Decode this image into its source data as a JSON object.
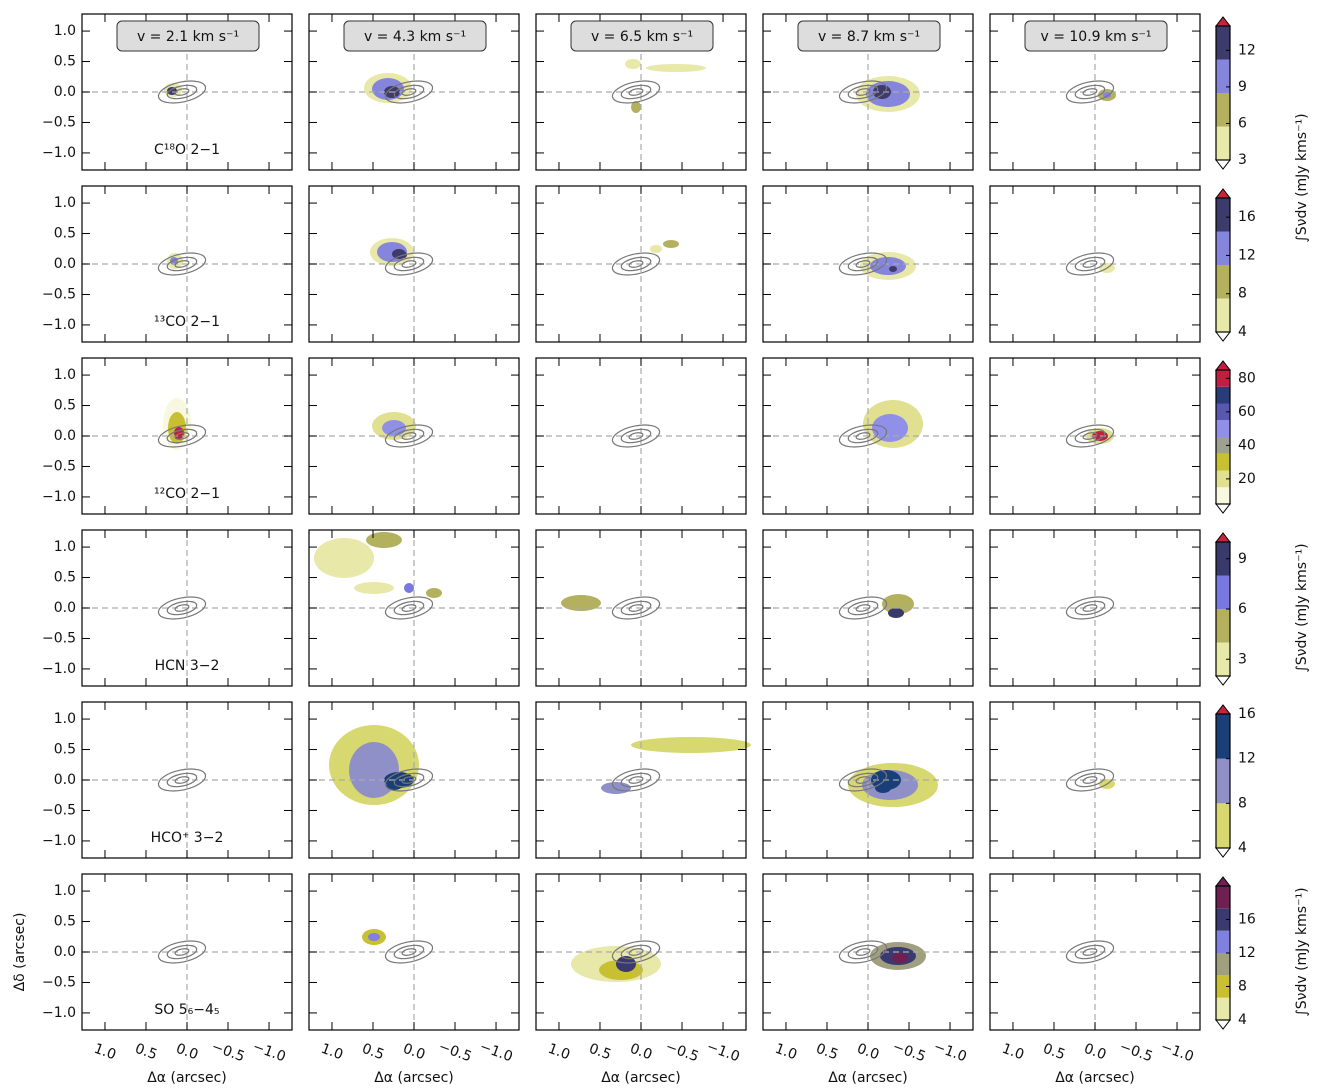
{
  "chart_data": {
    "type": "channel-map",
    "xlabel": "Δα (arcsec)",
    "ylabel": "Δδ (arcsec)",
    "colorbar_label": "∫Sνdv (mJy kms⁻¹)",
    "velocities": [
      "v = 2.1 km s⁻¹",
      "v = 4.3 km s⁻¹",
      "v = 6.5 km s⁻¹",
      "v = 8.7 km s⁻¹",
      "v = 10.9 km s⁻¹"
    ],
    "lines": [
      "C¹⁸O 2−1",
      "¹³CO 2−1",
      "¹²CO 2−1",
      "HCN 3−2",
      "HCO⁺ 3−2",
      "SO 5₆−4₅"
    ],
    "xlim": [
      1.28,
      -1.28
    ],
    "ylim": [
      -1.28,
      1.28
    ],
    "xticks": [
      {
        "value": 1,
        "label": "1.0"
      },
      {
        "value": 0.5,
        "label": "0.5"
      },
      {
        "value": 0,
        "label": "0.0"
      },
      {
        "value": -0.5,
        "label": "−0.5"
      },
      {
        "value": -1,
        "label": "−1.0"
      }
    ],
    "yticks": [
      {
        "value": 1,
        "label": "1.0"
      },
      {
        "value": 0.5,
        "label": "0.5"
      },
      {
        "value": 0,
        "label": "0.0"
      },
      {
        "value": -0.5,
        "label": "−0.5"
      },
      {
        "value": -1,
        "label": "−1.0"
      }
    ],
    "colorbars": [
      {
        "lim": [
          3,
          14
        ],
        "ticks": [
          3,
          6,
          9,
          12
        ],
        "colors": [
          "#e8e8a8",
          "#b3b05e",
          "#8585dc",
          "#3d3b6b"
        ],
        "over": "#c8233d"
      },
      {
        "lim": [
          4,
          18
        ],
        "ticks": [
          4,
          8,
          12,
          16
        ],
        "colors": [
          "#e8e8a8",
          "#b3b05e",
          "#8585dc",
          "#3d3b6b"
        ],
        "over": "#c8233d"
      },
      {
        "lim": [
          5,
          85
        ],
        "ticks": [
          20,
          40,
          60,
          80
        ],
        "colors": [
          "#f8f8e0",
          "#e0e090",
          "#c8c030",
          "#a0a090",
          "#9090e8",
          "#5858b0",
          "#283c78",
          "#c02040"
        ],
        "over": "#c02040"
      },
      {
        "lim": [
          2,
          10
        ],
        "ticks": [
          3,
          6,
          9
        ],
        "colors": [
          "#e8e8a8",
          "#b3b05e",
          "#7878e0",
          "#383a6a"
        ],
        "over": "#c8233d"
      },
      {
        "lim": [
          4,
          16
        ],
        "ticks": [
          4,
          8,
          12,
          16
        ],
        "colors": [
          "#d8d870",
          "#9090c8",
          "#1a3f78"
        ],
        "over": "#c8233d"
      },
      {
        "lim": [
          4,
          20
        ],
        "ticks": [
          4,
          8,
          12,
          16
        ],
        "colors": [
          "#e8e8a8",
          "#c8c030",
          "#a0a080",
          "#8080e0",
          "#3a3a70",
          "#702050"
        ],
        "over": "#702050"
      }
    ]
  }
}
